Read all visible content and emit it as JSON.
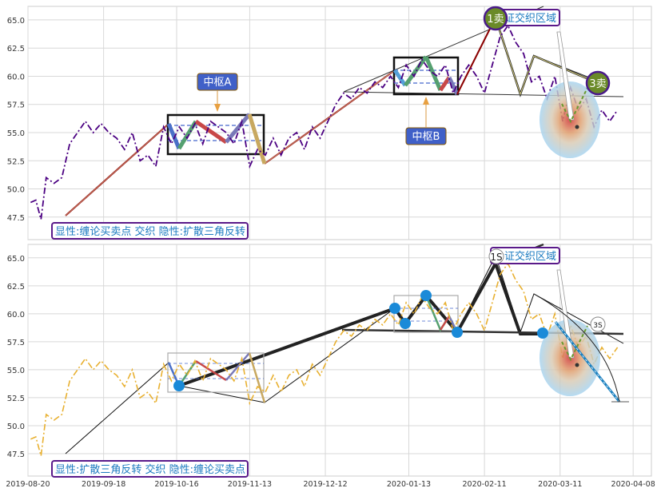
{
  "chart_data": [
    {
      "type": "line",
      "panel": "top",
      "ylim": [
        45.5,
        66.2
      ],
      "yticks": [
        "47.5",
        "50.0",
        "52.5",
        "55.0",
        "57.5",
        "60.0",
        "62.5",
        "65.0"
      ],
      "grid": true,
      "price_color": "#4b0082",
      "price_style": "dash-dot",
      "price": {
        "x": [
          "2019-08-21",
          "2019-08-23",
          "2019-08-25",
          "2019-08-27",
          "2019-08-30",
          "2019-09-02",
          "2019-09-05",
          "2019-09-08",
          "2019-09-11",
          "2019-09-14",
          "2019-09-17",
          "2019-09-20",
          "2019-09-23",
          "2019-09-26",
          "2019-09-29",
          "2019-10-02",
          "2019-10-05",
          "2019-10-08",
          "2019-10-11",
          "2019-10-14",
          "2019-10-17",
          "2019-10-20",
          "2019-10-23",
          "2019-10-26",
          "2019-10-29",
          "2019-11-01",
          "2019-11-04",
          "2019-11-07",
          "2019-11-10",
          "2019-11-13",
          "2019-11-16",
          "2019-11-19",
          "2019-11-22",
          "2019-11-25",
          "2019-11-28",
          "2019-12-01",
          "2019-12-04",
          "2019-12-07",
          "2019-12-10",
          "2019-12-13",
          "2019-12-16",
          "2019-12-19",
          "2019-12-22",
          "2019-12-25",
          "2019-12-28",
          "2019-12-31",
          "2020-01-03",
          "2020-01-06",
          "2020-01-09",
          "2020-01-12",
          "2020-01-15",
          "2020-01-18",
          "2020-01-21",
          "2020-01-24",
          "2020-01-27",
          "2020-01-30",
          "2020-02-02",
          "2020-02-05",
          "2020-02-08",
          "2020-02-11",
          "2020-02-14",
          "2020-02-17",
          "2020-02-20",
          "2020-02-23",
          "2020-02-26",
          "2020-02-29",
          "2020-03-03",
          "2020-03-06",
          "2020-03-09",
          "2020-03-12",
          "2020-03-15",
          "2020-03-18",
          "2020-03-21",
          "2020-03-24",
          "2020-03-27",
          "2020-03-30",
          "2020-04-02"
        ],
        "y": [
          48.8,
          49.0,
          47.3,
          51.0,
          50.5,
          51.0,
          54.0,
          55.0,
          56.0,
          55.0,
          55.8,
          55.0,
          54.5,
          53.5,
          55.0,
          52.5,
          53.0,
          52.0,
          55.5,
          54.0,
          55.5,
          54.5,
          55.8,
          54.0,
          56.0,
          55.5,
          55.0,
          54.0,
          56.0,
          52.0,
          53.5,
          53.0,
          54.5,
          53.0,
          54.5,
          55.0,
          53.5,
          55.5,
          54.5,
          56.0,
          57.5,
          58.5,
          58.0,
          59.0,
          58.5,
          59.5,
          59.0,
          60.0,
          59.0,
          61.0,
          60.0,
          61.5,
          60.5,
          60.0,
          61.0,
          58.5,
          60.0,
          61.0,
          60.0,
          58.5,
          61.0,
          63.5,
          64.5,
          63.0,
          62.0,
          59.5,
          60.0,
          58.0,
          60.0,
          56.0,
          59.0,
          57.0,
          58.0,
          55.5,
          57.0,
          56.0,
          57.0
        ]
      },
      "annotations": [
        {
          "text": "中枢A"
        },
        {
          "text": "中枢B"
        },
        {
          "text": "1卖"
        },
        {
          "text": "3卖"
        },
        {
          "text": "证交织区域"
        }
      ],
      "legend_text": "显性:缠论买卖点 交织 隐性:扩散三角反转",
      "legend_position": "bottom-left"
    },
    {
      "type": "line",
      "panel": "bottom",
      "ylim": [
        45.5,
        66.2
      ],
      "yticks": [
        "47.5",
        "50.0",
        "52.5",
        "55.0",
        "57.5",
        "60.0",
        "62.5",
        "65.0"
      ],
      "grid": true,
      "price_color": "#e8b030",
      "price_style": "dash-dot",
      "xlim": [
        "2019-08-20",
        "2020-04-15"
      ],
      "xticks": [
        "2019-08-20",
        "2019-09-18",
        "2019-10-16",
        "2019-11-13",
        "2019-12-12",
        "2020-01-13",
        "2020-02-11",
        "2020-03-11",
        "2020-04-08"
      ],
      "annotations": [
        {
          "text": "1S"
        },
        {
          "text": "3S"
        },
        {
          "text": "证交织区域"
        }
      ],
      "legend_text": "显性:扩散三角反转 交织 隐性:缠论买卖点",
      "legend_position": "bottom-left"
    }
  ]
}
